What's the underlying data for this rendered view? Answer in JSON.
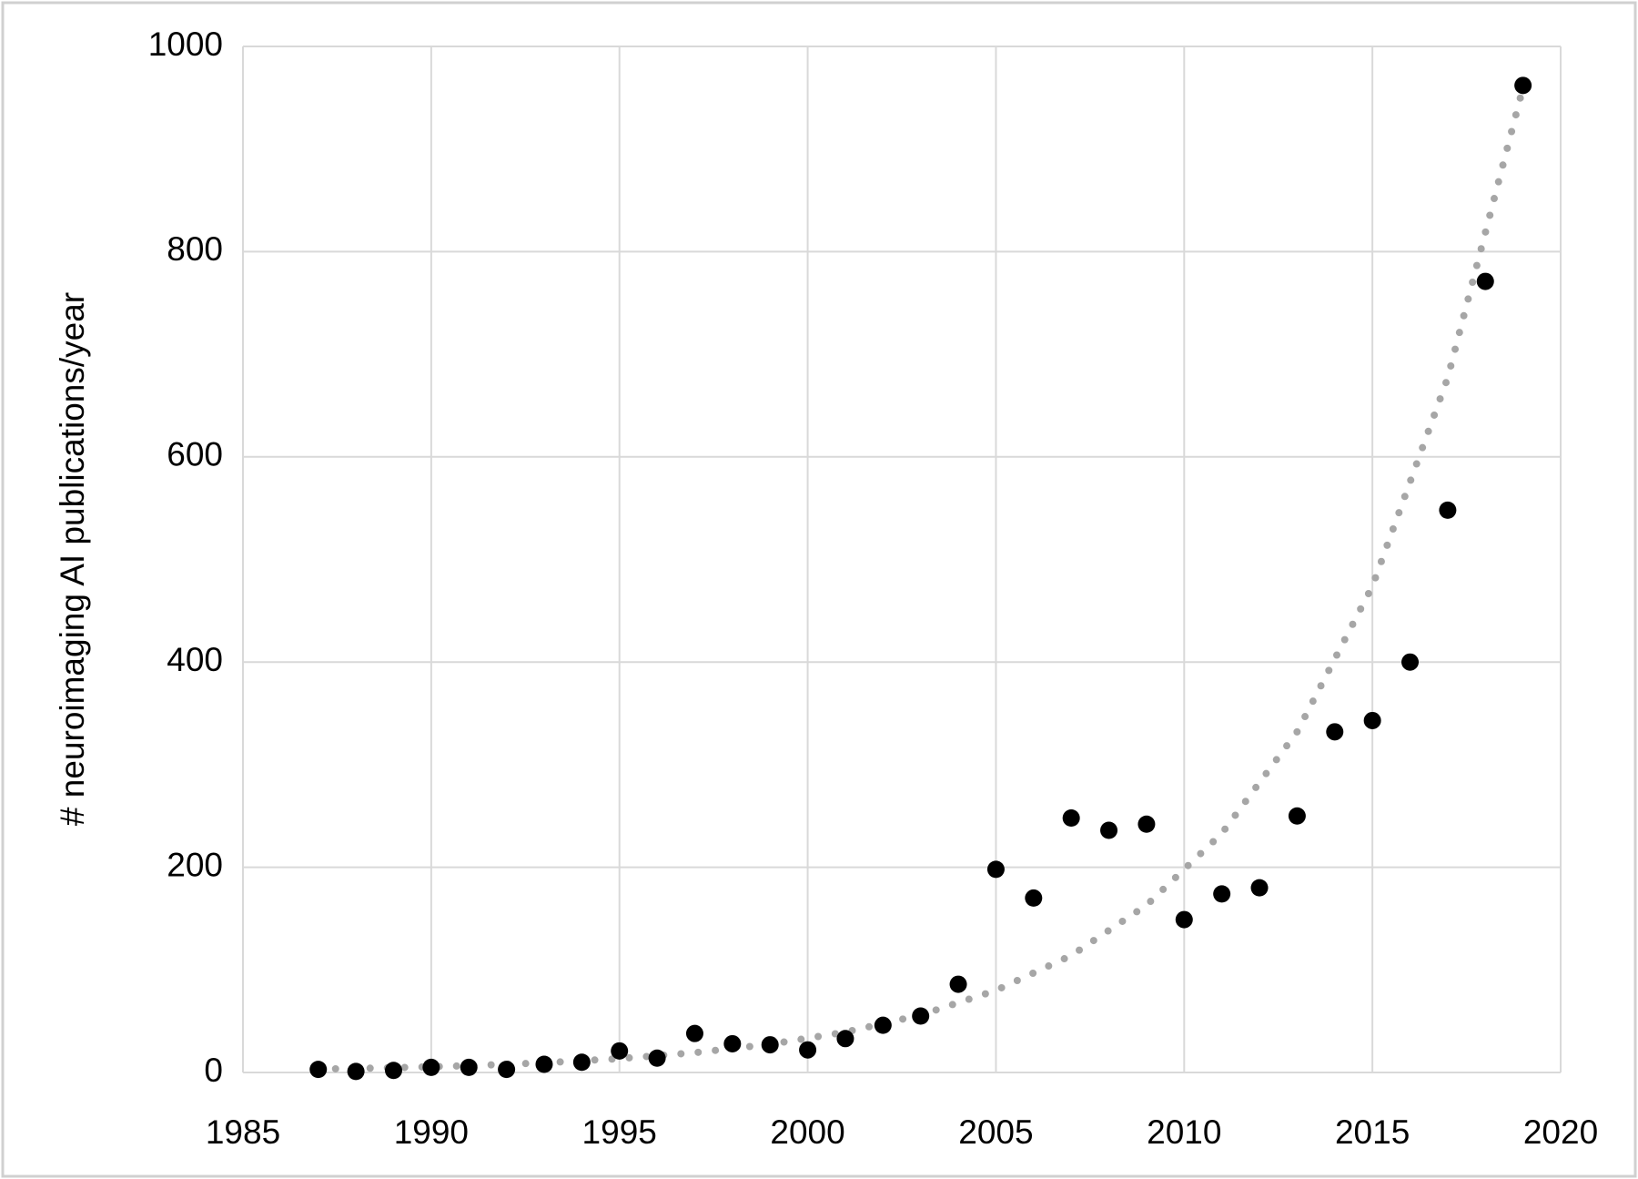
{
  "chart_data": {
    "type": "scatter",
    "ylabel": "# neuroimaging AI publications/year",
    "x": [
      1987,
      1988,
      1989,
      1990,
      1991,
      1992,
      1993,
      1994,
      1995,
      1996,
      1997,
      1998,
      1999,
      2000,
      2001,
      2002,
      2003,
      2004,
      2005,
      2006,
      2007,
      2008,
      2009,
      2010,
      2011,
      2012,
      2013,
      2014,
      2015,
      2016,
      2017,
      2018,
      2019
    ],
    "values": [
      3,
      1,
      2,
      5,
      5,
      3,
      8,
      10,
      21,
      14,
      38,
      28,
      27,
      22,
      33,
      46,
      55,
      86,
      198,
      170,
      248,
      236,
      242,
      149,
      174,
      180,
      250,
      332,
      343,
      400,
      548,
      771,
      962
    ],
    "color": "#000000",
    "trendline": {
      "x": [
        1987,
        1989,
        1991,
        1993,
        1995,
        1997,
        1999,
        2001,
        2003,
        2005,
        2007,
        2009,
        2011,
        2013,
        2015,
        2017,
        2019
      ],
      "values": [
        3.3,
        4.6,
        6.6,
        9.4,
        13.5,
        19.3,
        27.5,
        39.3,
        56,
        80,
        114,
        163,
        233,
        332,
        474,
        677,
        960
      ],
      "color": "#a6a6a6"
    },
    "xlim": [
      1985,
      2020
    ],
    "xticks": [
      1985,
      1990,
      1995,
      2000,
      2005,
      2010,
      2015,
      2020
    ],
    "ylim": [
      0,
      1000
    ],
    "yticks": [
      0,
      200,
      400,
      600,
      800,
      1000
    ],
    "grid": true
  }
}
